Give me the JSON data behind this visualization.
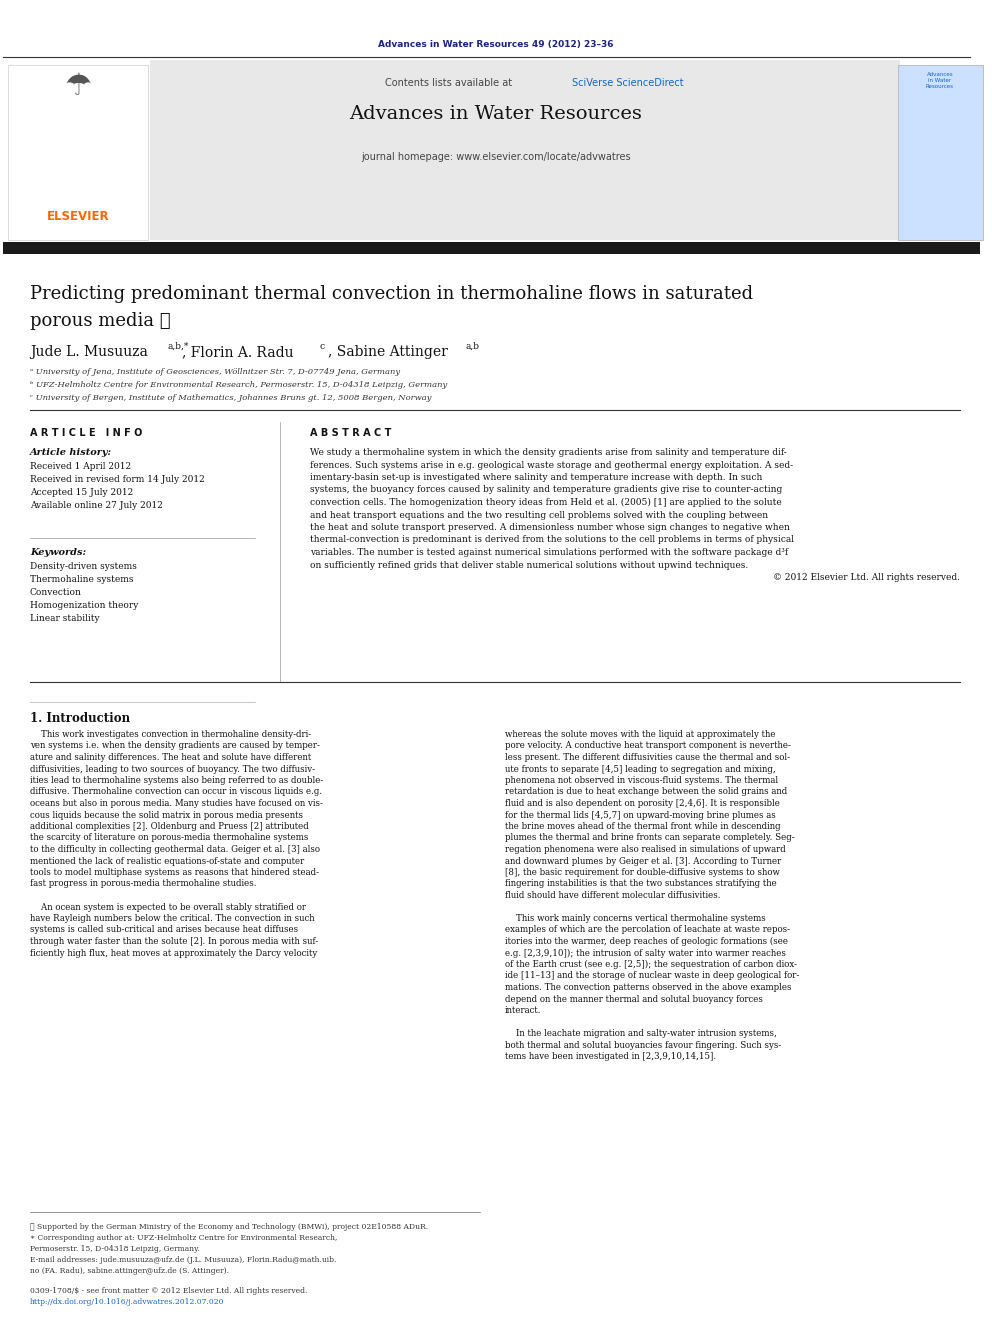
{
  "page_width": 9.92,
  "page_height": 13.23,
  "bg_color": "#ffffff",
  "journal_ref_text": "Advances in Water Resources 49 (2012) 23–36",
  "journal_ref_color": "#1a237e",
  "header_bg": "#e8e8e8",
  "header_sciverse_color": "#1565c0",
  "journal_title": "Advances in Water Resources",
  "journal_homepage": "journal homepage: www.elsevier.com/locate/advwatres",
  "thick_bar_color": "#1a1a1a",
  "elsevier_color": "#ff6600",
  "paper_title_line1": "Predicting predominant thermal convection in thermohaline flows in saturated",
  "paper_title_line2": "porous media ★",
  "affil_a": "ᵃ University of Jena, Institute of Geosciences, Wöllnitzer Str. 7, D-07749 Jena, Germany",
  "affil_b": "ᵇ UFZ-Helmholtz Centre for Environmental Research, Permoserstr. 15, D-04318 Leipzig, Germany",
  "affil_c": "ᶜ University of Bergen, Institute of Mathematics, Johannes Bruns gt. 12, 5008 Bergen, Norway",
  "article_info_header": "ARTICLE INFO",
  "abstract_header": "ABSTRACT",
  "article_history_label": "Article history:",
  "received": "Received 1 April 2012",
  "received_revised": "Received in revised form 14 July 2012",
  "accepted": "Accepted 15 July 2012",
  "available": "Available online 27 July 2012",
  "keywords_label": "Keywords:",
  "keywords": [
    "Density-driven systems",
    "Thermohaline systems",
    "Convection",
    "Homogenization theory",
    "Linear stability"
  ],
  "intro_header": "1. Introduction",
  "footnote1": "★ Supported by the German Ministry of the Economy and Technology (BMWi), project 02E10588 ADuR.",
  "footnote2": "∗ Corresponding author at: UFZ-Helmholtz Centre for Environmental Research,",
  "footnote3": "Permoserstr. 15, D-04318 Leipzig, Germany.",
  "footnote4": "E-mail addresses: jude.musuuza@ufz.de (J.L. Musuuza), Florin.Radu@math.uib.",
  "footnote5": "no (FA. Radu), sabine.attinger@ufz.de (S. Attinger).",
  "doi_line1": "0309-1708/$ - see front matter © 2012 Elsevier Ltd. All rights reserved.",
  "doi_line2": "http://dx.doi.org/10.1016/j.advwatres.2012.07.020"
}
